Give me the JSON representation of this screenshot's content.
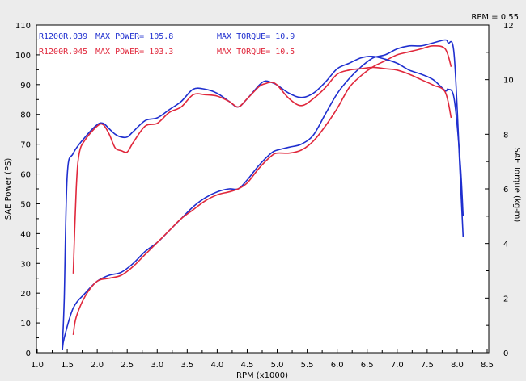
{
  "chart_data": {
    "type": "line",
    "xlabel": "RPM (x1000)",
    "ylabel_left": "SAE Power (PS)",
    "ylabel_right": "SAE Torque (kg-m)",
    "corner_note": "RPM = 0.55",
    "xlim": [
      1.0,
      8.5
    ],
    "ylim_left": [
      0,
      110
    ],
    "ylim_right": [
      0,
      12
    ],
    "x_ticks": [
      "1.0",
      "1.5",
      "2.0",
      "2.5",
      "3.0",
      "3.5",
      "4.0",
      "4.5",
      "5.0",
      "5.5",
      "6.0",
      "6.5",
      "7.0",
      "7.5",
      "8.0",
      "8.5"
    ],
    "y_left_ticks": [
      "0",
      "10",
      "20",
      "30",
      "40",
      "50",
      "60",
      "70",
      "80",
      "90",
      "100",
      "110"
    ],
    "y_right_ticks": [
      "0",
      "2",
      "4",
      "6",
      "8",
      "10",
      "12"
    ],
    "grid": false,
    "legend": [
      {
        "run": "R1200R.039",
        "power": "MAX POWER= 105.8",
        "torque": "MAX TORQUE= 10.9",
        "color": "#1f2fcf"
      },
      {
        "run": "R1200R.045",
        "power": "MAX POWER= 103.3",
        "torque": "MAX TORQUE= 10.5",
        "color": "#e0283c"
      }
    ],
    "series": [
      {
        "name": "R1200R.039",
        "quantity": "power",
        "axis": "left",
        "color": "#1f2fcf",
        "x": [
          1.42,
          1.45,
          1.6,
          1.8,
          2.0,
          2.2,
          2.4,
          2.6,
          2.8,
          3.0,
          3.2,
          3.4,
          3.6,
          3.8,
          4.0,
          4.2,
          4.35,
          4.5,
          4.7,
          4.9,
          5.0,
          5.2,
          5.4,
          5.6,
          5.8,
          6.0,
          6.2,
          6.4,
          6.6,
          6.8,
          7.0,
          7.2,
          7.4,
          7.6,
          7.8,
          7.85,
          7.95,
          8.05,
          8.1
        ],
        "y": [
          1,
          5,
          15,
          20,
          24,
          26,
          27,
          30,
          34,
          37,
          41,
          45,
          49,
          52,
          54,
          55,
          55,
          58,
          63,
          67,
          68,
          69,
          70,
          73,
          80,
          87,
          92,
          96,
          99,
          100,
          102,
          103,
          103,
          104,
          105,
          104,
          100,
          60,
          39
        ]
      },
      {
        "name": "R1200R.045",
        "quantity": "power",
        "axis": "left",
        "color": "#e0283c",
        "x": [
          1.6,
          1.65,
          1.8,
          2.0,
          2.2,
          2.4,
          2.6,
          2.8,
          3.0,
          3.2,
          3.4,
          3.6,
          3.8,
          4.0,
          4.2,
          4.35,
          4.5,
          4.7,
          4.9,
          5.0,
          5.2,
          5.4,
          5.6,
          5.8,
          6.0,
          6.2,
          6.4,
          6.6,
          6.8,
          7.0,
          7.2,
          7.4,
          7.6,
          7.8,
          7.9
        ],
        "y": [
          6,
          12,
          19,
          24,
          25,
          26,
          29,
          33,
          37,
          41,
          45,
          48,
          51,
          53,
          54,
          55,
          57,
          62,
          66,
          67,
          67,
          68,
          71,
          76,
          82,
          89,
          93,
          96,
          98,
          100,
          101,
          102,
          103,
          102,
          96
        ]
      },
      {
        "name": "R1200R.039",
        "quantity": "torque",
        "axis": "right",
        "color": "#1f2fcf",
        "x": [
          1.42,
          1.45,
          1.5,
          1.6,
          1.8,
          2.0,
          2.1,
          2.2,
          2.3,
          2.4,
          2.5,
          2.6,
          2.8,
          3.0,
          3.2,
          3.4,
          3.6,
          3.8,
          4.0,
          4.2,
          4.35,
          4.5,
          4.7,
          4.8,
          4.9,
          5.0,
          5.2,
          5.4,
          5.6,
          5.8,
          6.0,
          6.2,
          6.4,
          6.6,
          6.8,
          7.0,
          7.2,
          7.4,
          7.6,
          7.8,
          7.85,
          7.95,
          8.05,
          8.1
        ],
        "y": [
          0.3,
          2.0,
          6.5,
          7.3,
          7.9,
          8.35,
          8.4,
          8.2,
          8.0,
          7.9,
          7.9,
          8.1,
          8.5,
          8.6,
          8.9,
          9.2,
          9.65,
          9.65,
          9.5,
          9.2,
          9.0,
          9.3,
          9.8,
          9.95,
          9.9,
          9.8,
          9.5,
          9.35,
          9.5,
          9.9,
          10.4,
          10.6,
          10.8,
          10.85,
          10.75,
          10.6,
          10.35,
          10.2,
          10.0,
          9.6,
          9.65,
          9.3,
          7.0,
          5.0
        ]
      },
      {
        "name": "R1200R.045",
        "quantity": "torque",
        "axis": "right",
        "color": "#e0283c",
        "x": [
          1.6,
          1.65,
          1.7,
          1.8,
          2.0,
          2.1,
          2.2,
          2.3,
          2.4,
          2.5,
          2.6,
          2.8,
          3.0,
          3.2,
          3.4,
          3.6,
          3.8,
          4.0,
          4.2,
          4.35,
          4.5,
          4.7,
          4.8,
          4.9,
          5.0,
          5.2,
          5.4,
          5.6,
          5.8,
          6.0,
          6.2,
          6.4,
          6.6,
          6.8,
          7.0,
          7.2,
          7.4,
          7.6,
          7.8,
          7.9
        ],
        "y": [
          2.9,
          6.0,
          7.3,
          7.8,
          8.3,
          8.35,
          8.0,
          7.5,
          7.4,
          7.35,
          7.7,
          8.3,
          8.4,
          8.8,
          9.0,
          9.45,
          9.45,
          9.4,
          9.2,
          9.0,
          9.3,
          9.75,
          9.85,
          9.9,
          9.8,
          9.3,
          9.05,
          9.3,
          9.7,
          10.2,
          10.35,
          10.4,
          10.45,
          10.4,
          10.35,
          10.2,
          10.0,
          9.8,
          9.55,
          8.6
        ]
      }
    ]
  }
}
